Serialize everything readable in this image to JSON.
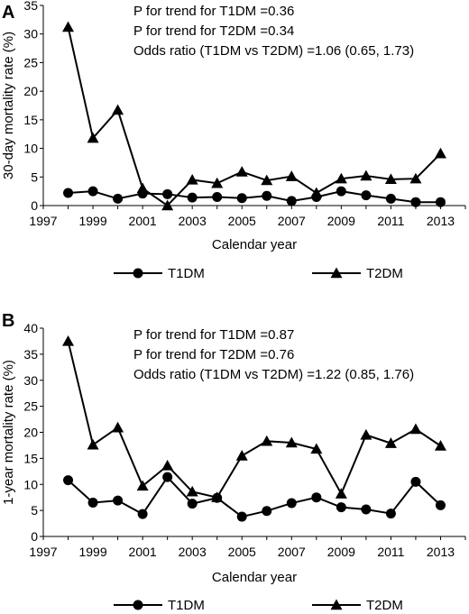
{
  "chart_data": [
    {
      "type": "line",
      "panel_label": "A",
      "xlabel": "Calendar year",
      "ylabel": "30-day mortality rate (%)",
      "xlim": [
        1997,
        2014
      ],
      "ylim": [
        0,
        35
      ],
      "yticks": [
        0,
        5,
        10,
        15,
        20,
        25,
        30,
        35
      ],
      "xticks": [
        1997,
        1999,
        2001,
        2003,
        2005,
        2007,
        2009,
        2011,
        2013
      ],
      "x": [
        1998,
        1999,
        2000,
        2001,
        2002,
        2003,
        2004,
        2005,
        2006,
        2007,
        2008,
        2009,
        2010,
        2011,
        2012,
        2013
      ],
      "annotations": [
        "P for trend for T1DM =0.36",
        "P for trend for T2DM =0.34",
        "Odds ratio (T1DM vs T2DM) =1.06 (0.65, 1.73)"
      ],
      "legend_position": "bottom",
      "series": [
        {
          "name": "T1DM",
          "marker": "circle",
          "values": [
            2.2,
            2.5,
            1.2,
            2.1,
            2.0,
            1.4,
            1.5,
            1.3,
            1.7,
            0.8,
            1.5,
            2.5,
            1.8,
            1.2,
            0.6,
            0.6
          ]
        },
        {
          "name": "T2DM",
          "marker": "triangle",
          "values": [
            31.2,
            11.8,
            16.7,
            3.0,
            0.0,
            4.5,
            3.9,
            5.9,
            4.4,
            5.1,
            2.2,
            4.7,
            5.2,
            4.6,
            4.7,
            9.1
          ]
        }
      ]
    },
    {
      "type": "line",
      "panel_label": "B",
      "xlabel": "Calendar year",
      "ylabel": "1-year mortality rate (%)",
      "xlim": [
        1997,
        2014
      ],
      "ylim": [
        0,
        40
      ],
      "yticks": [
        0,
        5,
        10,
        15,
        20,
        25,
        30,
        35,
        40
      ],
      "xticks": [
        1997,
        1999,
        2001,
        2003,
        2005,
        2007,
        2009,
        2011,
        2013
      ],
      "x": [
        1998,
        1999,
        2000,
        2001,
        2002,
        2003,
        2004,
        2005,
        2006,
        2007,
        2008,
        2009,
        2010,
        2011,
        2012,
        2013
      ],
      "annotations": [
        "P for trend for T1DM =0.87",
        "P for trend for T2DM =0.76",
        "Odds ratio (T1DM vs T2DM) =1.22 (0.85, 1.76)"
      ],
      "legend_position": "bottom",
      "series": [
        {
          "name": "T1DM",
          "marker": "circle",
          "values": [
            10.8,
            6.5,
            6.9,
            4.3,
            11.4,
            6.3,
            7.4,
            3.8,
            4.9,
            6.4,
            7.5,
            5.6,
            5.2,
            4.4,
            10.5,
            6.0
          ]
        },
        {
          "name": "T2DM",
          "marker": "triangle",
          "values": [
            37.5,
            17.6,
            20.9,
            9.7,
            13.6,
            8.6,
            7.5,
            15.5,
            18.3,
            18.0,
            16.8,
            8.2,
            19.5,
            17.9,
            20.6,
            17.4
          ]
        }
      ]
    }
  ]
}
